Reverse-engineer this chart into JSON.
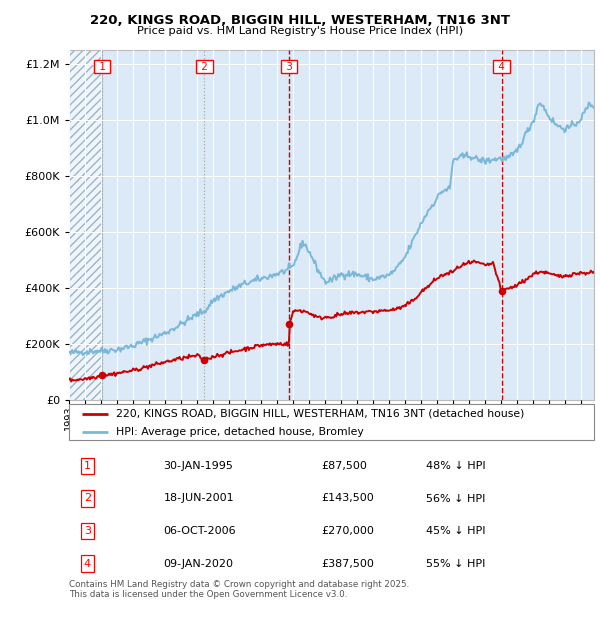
{
  "title": "220, KINGS ROAD, BIGGIN HILL, WESTERHAM, TN16 3NT",
  "subtitle": "Price paid vs. HM Land Registry's House Price Index (HPI)",
  "legend_red": "220, KINGS ROAD, BIGGIN HILL, WESTERHAM, TN16 3NT (detached house)",
  "legend_blue": "HPI: Average price, detached house, Bromley",
  "footer": "Contains HM Land Registry data © Crown copyright and database right 2025.\nThis data is licensed under the Open Government Licence v3.0.",
  "table": [
    {
      "num": 1,
      "date": "30-JAN-1995",
      "price": "£87,500",
      "pct": "48% ↓ HPI"
    },
    {
      "num": 2,
      "date": "18-JUN-2001",
      "price": "£143,500",
      "pct": "56% ↓ HPI"
    },
    {
      "num": 3,
      "date": "06-OCT-2006",
      "price": "£270,000",
      "pct": "45% ↓ HPI"
    },
    {
      "num": 4,
      "date": "09-JAN-2020",
      "price": "£387,500",
      "pct": "55% ↓ HPI"
    }
  ],
  "sale_prices": [
    87500,
    143500,
    270000,
    387500
  ],
  "hpi_color": "#7ab8d9",
  "price_color": "#cc0000",
  "bg_color": "#dce9f6",
  "ylim": [
    0,
    1250000
  ],
  "xlim_start": 1993.0,
  "xlim_end": 2025.8
}
